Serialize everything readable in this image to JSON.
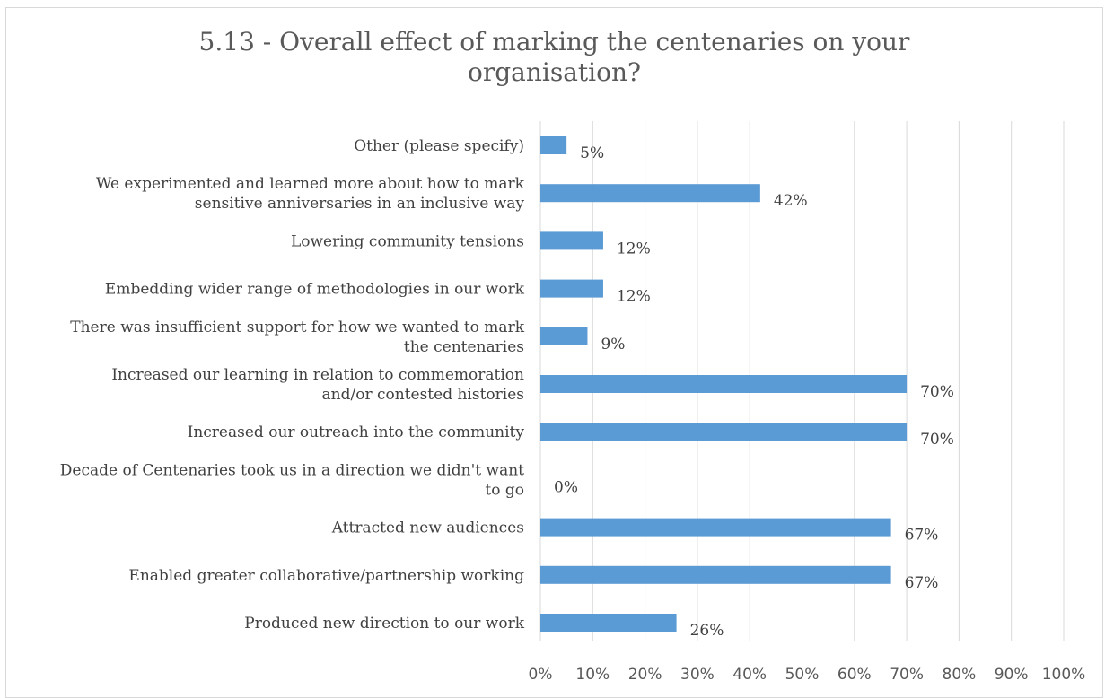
{
  "chart_data": {
    "type": "bar",
    "orientation": "horizontal",
    "title_lines": [
      "5.13 -  Overall effect of marking the centenaries on your",
      "organisation?"
    ],
    "categories": [
      [
        "Other (please specify)"
      ],
      [
        "We experimented and learned more about how to mark",
        "sensitive anniversaries in an inclusive way"
      ],
      [
        "Lowering community tensions"
      ],
      [
        "Embedding wider range of methodologies in our work"
      ],
      [
        "There was insufficient support for how we wanted to mark",
        "the centenaries"
      ],
      [
        "Increased our learning in relation to commemoration",
        "and/or contested histories"
      ],
      [
        "Increased our outreach into the community"
      ],
      [
        "Decade of Centenaries took us in a direction we didn't want",
        "to go"
      ],
      [
        "Attracted new audiences"
      ],
      [
        "Enabled greater collaborative/partnership working"
      ],
      [
        "Produced new direction to our work"
      ]
    ],
    "values": [
      5,
      42,
      12,
      12,
      9,
      70,
      70,
      0,
      67,
      67,
      26
    ],
    "data_labels": [
      "5%",
      "42%",
      "12%",
      "12%",
      "9%",
      "70%",
      "70%",
      "0%",
      "67%",
      "67%",
      "26%"
    ],
    "x_ticks": [
      "0%",
      "10%",
      "20%",
      "30%",
      "40%",
      "50%",
      "60%",
      "70%",
      "80%",
      "90%",
      "100%"
    ],
    "xlim": [
      0,
      100
    ],
    "grid": true,
    "legend": "none",
    "colors": {
      "bar": "#5b9bd5",
      "grid": "#d9d9d9",
      "text": "#404040"
    }
  }
}
